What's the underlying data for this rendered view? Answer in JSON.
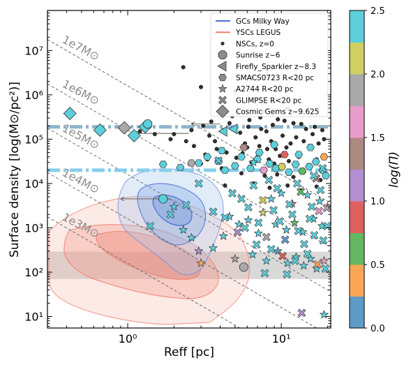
{
  "chart_data": {
    "type": "scatter",
    "xlabel": "Reff [pc]",
    "ylabel": "Surface density [log(M⊙/pc²)]",
    "xscale": "log",
    "yscale": "log",
    "xlim": [
      0.3,
      21
    ],
    "ylim": [
      5.5,
      80000000.0
    ],
    "x_ticks": [
      {
        "value": 1,
        "label": "10⁰"
      },
      {
        "value": 10,
        "label": "10¹"
      }
    ],
    "y_ticks": [
      {
        "value": 10,
        "label": "10¹"
      },
      {
        "value": 100,
        "label": "10²"
      },
      {
        "value": 1000,
        "label": "10³"
      },
      {
        "value": 10000,
        "label": "10⁴"
      },
      {
        "value": 100000,
        "label": "10⁵"
      },
      {
        "value": 1000000,
        "label": "10⁶"
      },
      {
        "value": 10000000,
        "label": "10⁷"
      }
    ],
    "mass_lines": [
      {
        "label": "1e7M⊙",
        "mass": 10000000.0
      },
      {
        "label": "1e6M⊙",
        "mass": 1000000.0
      },
      {
        "label": "1e5M⊙",
        "mass": 100000.0
      },
      {
        "label": "1e4M⊙",
        "mass": 10000.0
      },
      {
        "label": "1e3M⊙",
        "mass": 1000.0
      }
    ],
    "hlines": [
      {
        "y": 190000,
        "color": "#8fb3c9"
      },
      {
        "y": 20000,
        "color": "#87ceeb"
      }
    ],
    "gray_band": [
      70,
      290
    ],
    "legend": {
      "placement": "top-right",
      "entries": [
        {
          "label": "GCs Milky Way",
          "marker": "line",
          "color": "#4a6fd4"
        },
        {
          "label": "YSCs LEGUS",
          "marker": "line",
          "color": "#f08070"
        },
        {
          "label": "NSCs, z=0",
          "marker": "dot"
        },
        {
          "label": "Sunrise z~6",
          "marker": "octagon"
        },
        {
          "label": "Firefly_Sparkler z~8.3",
          "marker": "triangle-left"
        },
        {
          "label": "SMACS0723 R<20 pc",
          "marker": "hexagon"
        },
        {
          "label": "A2744 R<20 pc",
          "marker": "star"
        },
        {
          "label": "GLIMPSE R<20 pc",
          "marker": "x"
        },
        {
          "label": "Cosmic Gems z~9.625",
          "marker": "diamond"
        }
      ]
    },
    "colorbar": {
      "label": "log(Π)",
      "range": [
        0,
        2.5
      ],
      "ticks": [
        "0.0",
        "0.5",
        "1.0",
        "1.5",
        "2.0",
        "2.5"
      ],
      "colors": [
        "#5f9bc6",
        "#fca655",
        "#64b863",
        "#e06060",
        "#b18fd0",
        "#ad8a80",
        "#e89ccc",
        "#a9a9a9",
        "#cfcf62",
        "#5ccfdb"
      ]
    },
    "series": [
      {
        "name": "NSCs, z=0",
        "marker": "dot",
        "points": [
          [
            2.3,
            4200000.0
          ],
          [
            3.0,
            1500000.0
          ],
          [
            4.0,
            700000.0
          ],
          [
            5.0,
            1200000.0
          ],
          [
            5.2,
            400000.0
          ],
          [
            6.5,
            2500000.0
          ],
          [
            7.4,
            170000.0
          ],
          [
            7.6,
            420000.0
          ],
          [
            9.5,
            280000.0
          ],
          [
            11,
            500000.0
          ],
          [
            12,
            230000.0
          ],
          [
            13.5,
            220000.0
          ],
          [
            2.0,
            130000.0
          ],
          [
            2.6,
            160000.0
          ],
          [
            3.1,
            200000.0
          ],
          [
            3.4,
            120000.0
          ],
          [
            3.7,
            90000.0
          ],
          [
            4.2,
            160000.0
          ],
          [
            4.6,
            230000.0
          ],
          [
            5.4,
            140000.0
          ],
          [
            5.8,
            80000.0
          ],
          [
            6.1,
            190000.0
          ],
          [
            6.8,
            110000.0
          ],
          [
            7.2,
            70000.0
          ],
          [
            8.0,
            150000.0
          ],
          [
            8.6,
            90000.0
          ],
          [
            9.2,
            60000.0
          ],
          [
            10.2,
            120000.0
          ],
          [
            11.5,
            80000.0
          ],
          [
            12.5,
            110000.0
          ],
          [
            14,
            90000.0
          ],
          [
            16,
            130000.0
          ],
          [
            17.5,
            80000.0
          ],
          [
            19,
            100000.0
          ],
          [
            3.2,
            45000.0
          ],
          [
            3.8,
            60000.0
          ],
          [
            4.4,
            50000.0
          ],
          [
            5.1,
            38000.0
          ],
          [
            5.6,
            48000.0
          ],
          [
            6.4,
            30000.0
          ],
          [
            7.0,
            40000.0
          ],
          [
            8.3,
            35000.0
          ],
          [
            9.0,
            28000.0
          ],
          [
            9.8,
            42000.0
          ],
          [
            11.2,
            32000.0
          ],
          [
            13,
            40000.0
          ],
          [
            15,
            26000.0
          ],
          [
            17,
            35000.0
          ],
          [
            2.7,
            70000.0
          ],
          [
            2.4,
            90000.0
          ],
          [
            1.9,
            100000.0
          ],
          [
            1.5,
            130000.0
          ],
          [
            1.2,
            150000.0
          ],
          [
            3.5,
            250000.0
          ],
          [
            4.8,
            330000.0
          ],
          [
            6.2,
            270000.0
          ],
          [
            7.3,
            310000.0
          ],
          [
            8.8,
            210000.0
          ],
          [
            10.5,
            260000.0
          ],
          [
            14.5,
            170000.0
          ],
          [
            16.5,
            190000.0
          ],
          [
            18.5,
            160000.0
          ],
          [
            5.5,
            17000.0
          ],
          [
            7.8,
            15000.0
          ],
          [
            9.4,
            16000.0
          ],
          [
            12,
            14000.0
          ],
          [
            14,
            18000.0
          ],
          [
            18,
            12000.0
          ],
          [
            4.3,
            9000.0
          ],
          [
            6.6,
            10000.0
          ],
          [
            8.4,
            8000.0
          ],
          [
            11,
            9000.0
          ],
          [
            13.5,
            7000.0
          ],
          [
            17,
            8500.0
          ],
          [
            3.0,
            28000.0
          ],
          [
            3.3,
            35000.0
          ],
          [
            4.1,
            22000.0
          ],
          [
            6.0,
            65000.0
          ],
          [
            8.1,
            60000.0
          ],
          [
            10.8,
            65000.0
          ]
        ]
      },
      {
        "name": "Cosmic Gems z~9.625",
        "marker": "diamond",
        "cidx": 9,
        "points": [
          [
            0.42,
            380000.0
          ],
          [
            0.66,
            160000.0
          ],
          [
            0.95,
            180000.0
          ],
          [
            1.1,
            120000.0
          ],
          [
            1.3,
            190000.0
          ]
        ]
      },
      {
        "name": "Sunrise z~6",
        "marker": "octagon",
        "cidx": 9,
        "points": [
          [
            1.35,
            220000.0
          ],
          [
            1.7,
            4500.0
          ],
          [
            5.7,
            130
          ]
        ]
      },
      {
        "name": "Firefly_Sparkler z~8.3",
        "marker": "triangle-left",
        "cidx": 9,
        "points": [
          [
            4.2,
            150000.0
          ],
          [
            4.9,
            170000.0
          ]
        ]
      },
      {
        "name": "SMACS0723 R<20 pc",
        "marker": "hexagon",
        "cidx": 9,
        "points": [
          [
            1.7,
            27000.0
          ],
          [
            2.2,
            23000.0
          ],
          [
            2.6,
            29000.0
          ],
          [
            2.9,
            29000.0
          ],
          [
            3.3,
            40000.0
          ],
          [
            3.9,
            32000.0
          ],
          [
            4.3,
            20000.0
          ],
          [
            5.0,
            25000.0
          ],
          [
            5.5,
            40000.0
          ],
          [
            6.3,
            22000.0
          ],
          [
            7.0,
            35000.0
          ],
          [
            7.7,
            20000.0
          ],
          [
            8.4,
            28000.0
          ],
          [
            9.2,
            22000.0
          ],
          [
            10.1,
            24000.0
          ],
          [
            11.2,
            18000.0
          ],
          [
            12.4,
            27000.0
          ],
          [
            13.7,
            19000.0
          ],
          [
            15.2,
            24000.0
          ],
          [
            16.8,
            31000.0
          ],
          [
            18.6,
            20000.0
          ],
          [
            19.5,
            15000.0
          ],
          [
            4.1,
            55000.0
          ],
          [
            5.7,
            65000.0
          ],
          [
            7.2,
            50000.0
          ],
          [
            9.0,
            75000.0
          ],
          [
            10.5,
            45000.0
          ],
          [
            13,
            45000.0
          ],
          [
            15.5,
            65000.0
          ],
          [
            19,
            40000.0
          ]
        ]
      },
      {
        "name": "A2744 R<20 pc",
        "marker": "star",
        "cidx": 9,
        "points": [
          [
            2.0,
            3000.0
          ],
          [
            2.3,
            900
          ],
          [
            2.9,
            300
          ],
          [
            3.6,
            350
          ],
          [
            4.2,
            650
          ],
          [
            5.0,
            200
          ],
          [
            6.5,
            250
          ],
          [
            8.0,
            180
          ],
          [
            9.5,
            300
          ],
          [
            11,
            160
          ],
          [
            12.5,
            220
          ],
          [
            14,
            140
          ],
          [
            15.5,
            200
          ],
          [
            17,
            120
          ],
          [
            19,
            180
          ],
          [
            4.6,
            1800
          ],
          [
            6.1,
            1500
          ],
          [
            7.6,
            2200
          ],
          [
            9.2,
            1200
          ],
          [
            10.8,
            900
          ],
          [
            12.2,
            1300
          ],
          [
            13.8,
            800
          ],
          [
            16.2,
            1600
          ],
          [
            18.4,
            1100
          ],
          [
            8.6,
            4500
          ],
          [
            10,
            6000
          ],
          [
            11.8,
            3500
          ],
          [
            14.8,
            5500
          ],
          [
            17.8,
            4000
          ],
          [
            20,
            3000
          ],
          [
            19,
            11
          ],
          [
            6.6,
            30000.0
          ],
          [
            3.0,
            160
          ],
          [
            7.1,
            750
          ],
          [
            5.3,
            1200
          ],
          [
            2.6,
            600
          ]
        ]
      },
      {
        "name": "GLIMPSE R<20 pc",
        "marker": "x",
        "cidx": 9,
        "points": [
          [
            1.4,
            1100.0
          ],
          [
            1.9,
            2000.0
          ],
          [
            2.4,
            3300.0
          ],
          [
            3.6,
            2300.0
          ],
          [
            4.3,
            1700.0
          ],
          [
            5.2,
            800
          ],
          [
            6.1,
            2900.0
          ],
          [
            7.1,
            1300.0
          ],
          [
            8.0,
            620
          ],
          [
            8.9,
            2500.0
          ],
          [
            9.8,
            1400.0
          ],
          [
            10.6,
            540
          ],
          [
            11.8,
            2000.0
          ],
          [
            12.9,
            850
          ],
          [
            14.1,
            430
          ],
          [
            15.3,
            1600.0
          ],
          [
            16.4,
            680
          ],
          [
            17.6,
            2400.0
          ],
          [
            18.8,
            520
          ],
          [
            19.9,
            1100.0
          ],
          [
            7.6,
            4200.0
          ],
          [
            9.4,
            7800.0
          ],
          [
            11.3,
            3400.0
          ],
          [
            13.4,
            6500.0
          ],
          [
            15.8,
            3000.0
          ],
          [
            18.0,
            7100.0
          ],
          [
            6.6,
            9000.0
          ],
          [
            8.3,
            12000.0
          ],
          [
            12.7,
            10000.0
          ],
          [
            16.9,
            13000.0
          ],
          [
            5.5,
            4500.0
          ],
          [
            4.8,
            6000.0
          ],
          [
            10.2,
            230
          ],
          [
            12.3,
            180
          ],
          [
            14.8,
            260
          ],
          [
            17.2,
            150
          ],
          [
            19.4,
            120
          ],
          [
            8.6,
            330
          ],
          [
            6.9,
            420
          ],
          [
            5.8,
            1000.0
          ],
          [
            3.9,
            33000.0
          ],
          [
            2.9,
            10000.0
          ],
          [
            7.8,
            95
          ],
          [
            10.9,
            90
          ],
          [
            13.6,
            12
          ],
          [
            16.3,
            15000.0
          ],
          [
            18.6,
            22000.0
          ],
          [
            19.8,
            2800.0
          ]
        ]
      }
    ],
    "error_points": [
      {
        "x": 1.9,
        "y": 4500.0,
        "x_from": 0.9,
        "x_to": 1.9
      },
      {
        "x": 2.5,
        "y": 135000.0,
        "x_from": 1.1,
        "x_to": 2.5
      },
      {
        "x": 4.0,
        "y": 220000.0,
        "x_from": 2.6,
        "x_to": 4.0
      }
    ],
    "contours": {
      "YSCs LEGUS": "#f08070",
      "GCs Milky Way": "#4a6fd4"
    }
  }
}
